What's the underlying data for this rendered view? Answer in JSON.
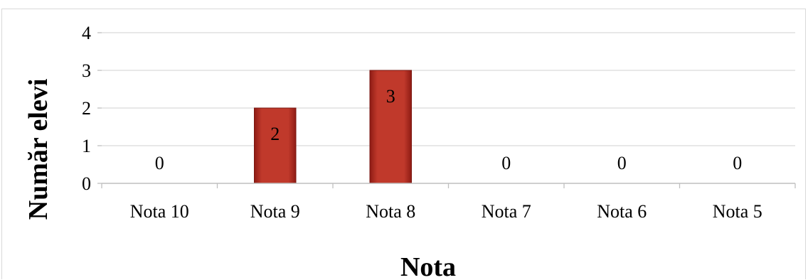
{
  "chart_data": {
    "type": "bar",
    "title": "",
    "xlabel": "Nota",
    "ylabel": "Număr elevi",
    "categories": [
      "Nota 10",
      "Nota 9",
      "Nota 8",
      "Nota 7",
      "Nota 6",
      "Nota 5"
    ],
    "values": [
      0,
      2,
      3,
      0,
      0,
      0
    ],
    "data_labels": [
      "0",
      "2",
      "3",
      "0",
      "0",
      "0"
    ],
    "ylim": [
      0,
      4
    ],
    "yticks": [
      "0",
      "1",
      "2",
      "3",
      "4"
    ],
    "grid": true,
    "legend": "none",
    "colors": {
      "bar": "#c0392b",
      "bar_dark": "#8e1b14",
      "grid": "#d9d9d9",
      "text": "#000000"
    }
  }
}
